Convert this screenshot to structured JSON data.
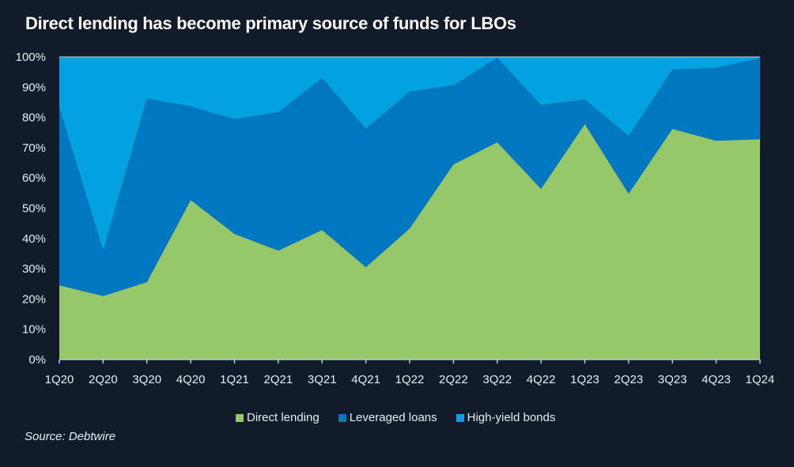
{
  "chart_data": {
    "type": "area",
    "stacked": true,
    "normalized": true,
    "title": "Direct lending has become primary source of funds for LBOs",
    "xlabel": "",
    "ylabel": "",
    "ylim": [
      0,
      100
    ],
    "y_ticks": [
      "0%",
      "10%",
      "20%",
      "30%",
      "40%",
      "50%",
      "60%",
      "70%",
      "80%",
      "90%",
      "100%"
    ],
    "categories": [
      "1Q20",
      "2Q20",
      "3Q20",
      "4Q20",
      "1Q21",
      "2Q21",
      "3Q21",
      "4Q21",
      "1Q22",
      "2Q22",
      "3Q22",
      "4Q22",
      "1Q23",
      "2Q23",
      "3Q23",
      "4Q23",
      "1Q24"
    ],
    "series": [
      {
        "name": "Direct lending",
        "color": "#96c86a",
        "values": [
          24.5,
          21.0,
          25.6,
          52.7,
          41.5,
          36.0,
          42.8,
          30.5,
          43.3,
          64.5,
          71.8,
          56.4,
          77.8,
          54.8,
          76.2,
          72.3,
          72.8
        ]
      },
      {
        "name": "Leveraged loans",
        "color": "#0078c1",
        "values": [
          58.8,
          15.0,
          60.6,
          30.9,
          37.9,
          45.7,
          50.2,
          45.7,
          45.2,
          26.1,
          27.9,
          27.7,
          8.1,
          19.1,
          19.6,
          24.0,
          26.8
        ]
      },
      {
        "name": "High-yield bonds",
        "color": "#00a3e0",
        "values": [
          16.7,
          64.0,
          13.8,
          16.4,
          20.6,
          18.3,
          7.0,
          23.8,
          11.5,
          9.4,
          0.3,
          15.9,
          14.1,
          26.1,
          4.2,
          3.7,
          0.4
        ]
      }
    ],
    "legend_position": "bottom-center",
    "grid": false,
    "source": "Source: Debtwire"
  },
  "colors": {
    "background": "#111b29",
    "axis": "#b8cde8"
  }
}
